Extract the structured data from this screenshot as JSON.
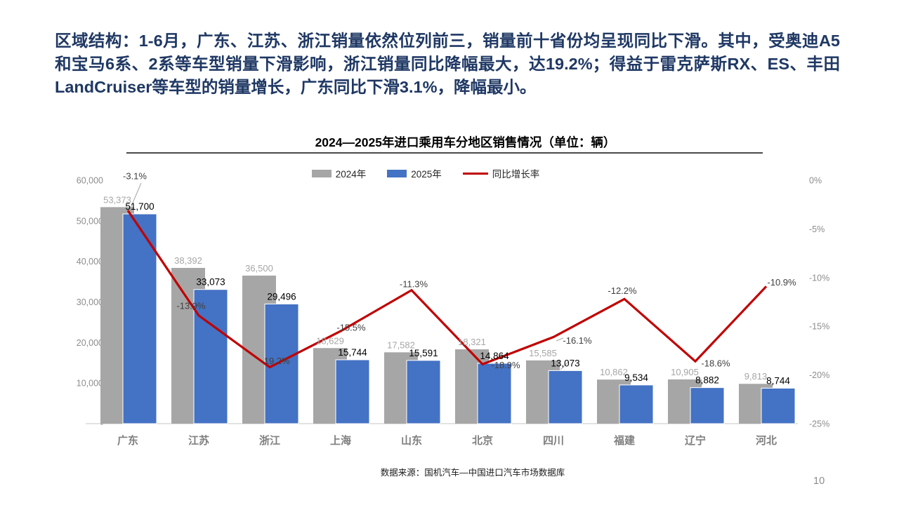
{
  "header": {
    "summary": "区域结构：1-6月，广东、江苏、浙江销量依然位列前三，销量前十省份均呈现同比下滑。其中，受奥迪A5和宝马6系、2系等车型销量下滑影响，浙江销量同比降幅最大，达19.2%；得益于雷克萨斯RX、ES、丰田LandCruiser等车型的销量增长，广东同比下滑3.1%，降幅最小。"
  },
  "chart_data": {
    "type": "bar",
    "title": "2024—2025年进口乘用车分地区销售情况（单位：辆）",
    "categories": [
      "广东",
      "江苏",
      "浙江",
      "上海",
      "山东",
      "北京",
      "四川",
      "福建",
      "辽宁",
      "河北"
    ],
    "series": [
      {
        "name": "2024年",
        "type": "bar",
        "color": "#A6A6A6",
        "values": [
          53373,
          38392,
          36500,
          18629,
          17582,
          18321,
          15585,
          10862,
          10905,
          9813
        ]
      },
      {
        "name": "2025年",
        "type": "bar",
        "color": "#4472C4",
        "values": [
          51700,
          33073,
          29496,
          15744,
          15591,
          14864,
          13073,
          9534,
          8882,
          8744
        ]
      },
      {
        "name": "同比增长率",
        "type": "line",
        "color": "#C00000",
        "axis": "secondary",
        "values_pct": [
          -3.1,
          -13.9,
          -19.2,
          -15.5,
          -11.3,
          -18.9,
          -16.1,
          -12.2,
          -18.6,
          -10.9
        ]
      }
    ],
    "primary_axis": {
      "ticks": [
        "60,000",
        "50,000",
        "40,000",
        "30,000",
        "20,000",
        "10,000",
        "-"
      ],
      "lim": [
        0,
        60000
      ]
    },
    "secondary_axis": {
      "ticks": [
        "0%",
        "-5%",
        "-10%",
        "-15%",
        "-20%",
        "-25%"
      ],
      "lim": [
        0,
        -25
      ]
    },
    "legend_position": "top",
    "grid": false
  },
  "footer": {
    "source": "数据来源：国机汽车—中国进口汽车市场数据库",
    "page": "10"
  }
}
